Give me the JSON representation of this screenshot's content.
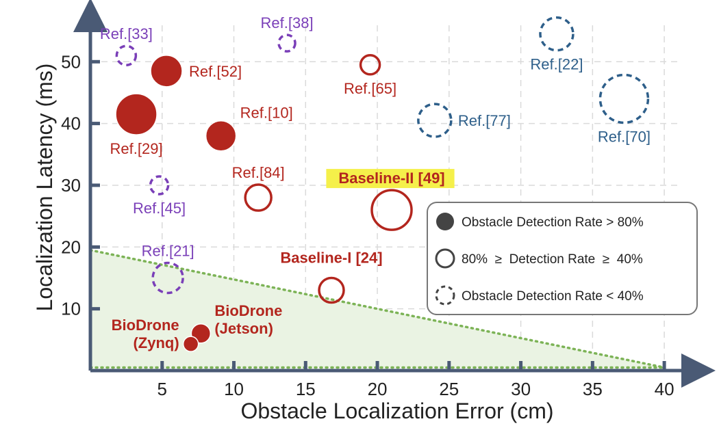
{
  "colors": {
    "red": "#B3261E",
    "purple": "#7A3FB8",
    "blue": "#2E5F8A",
    "axis": "#4A5A75",
    "grid": "#DADADA",
    "region_fill": "#EAF3E3",
    "region_line": "#7CB356",
    "highlight": "#F5F04A"
  },
  "legend": {
    "items": [
      {
        "marker": "filled",
        "label": "Obstacle Detection Rate > 80%"
      },
      {
        "marker": "open",
        "label": "80%  ≥  Detection Rate  ≥  40%"
      },
      {
        "marker": "dashed",
        "label": "Obstacle Detection Rate < 40%"
      }
    ]
  },
  "chart_data": {
    "type": "scatter",
    "title": "",
    "xlabel": "Obstacle Localization Error (cm)",
    "ylabel": "Localization Latency (ms)",
    "xlim": [
      0,
      42
    ],
    "ylim": [
      0,
      58
    ],
    "xticks": [
      5,
      10,
      15,
      20,
      25,
      30,
      35,
      40
    ],
    "yticks": [
      10,
      20,
      30,
      40,
      50
    ],
    "grid": true,
    "legend_position": "right",
    "shaded_region": {
      "line_from": [
        0,
        19.5
      ],
      "line_to": [
        40,
        0.5
      ]
    },
    "points": [
      {
        "label": "Ref.[33]",
        "x": 2.5,
        "y": 51,
        "r": 14,
        "style": "dashed",
        "color": "purple",
        "bold": false,
        "label_pos": "above"
      },
      {
        "label": "Ref.[38]",
        "x": 13.7,
        "y": 53,
        "r": 12,
        "style": "dashed",
        "color": "purple",
        "bold": false,
        "label_pos": "above"
      },
      {
        "label": "Ref.[52]",
        "x": 5.3,
        "y": 48.5,
        "r": 23,
        "style": "filled",
        "color": "red",
        "bold": false,
        "label_pos": "right"
      },
      {
        "label": "Ref.[29]",
        "x": 3.2,
        "y": 41.5,
        "r": 30,
        "style": "filled",
        "color": "red",
        "bold": false,
        "label_pos": "below"
      },
      {
        "label": "Ref.[10]",
        "x": 9.1,
        "y": 38,
        "r": 22,
        "style": "filled",
        "color": "red",
        "bold": false,
        "label_pos": "above-right"
      },
      {
        "label": "Ref.[45]",
        "x": 4.8,
        "y": 30,
        "r": 13,
        "style": "dashed",
        "color": "purple",
        "bold": false,
        "label_pos": "below"
      },
      {
        "label": "Ref.[84]",
        "x": 11.7,
        "y": 28,
        "r": 19,
        "style": "open",
        "color": "red",
        "bold": false,
        "label_pos": "above"
      },
      {
        "label": "Ref.[65]",
        "x": 19.5,
        "y": 49.5,
        "r": 14,
        "style": "open",
        "color": "red",
        "bold": false,
        "label_pos": "below"
      },
      {
        "label": "Baseline-II [49]",
        "x": 21,
        "y": 26,
        "r": 29,
        "style": "open",
        "color": "red",
        "bold": true,
        "label_pos": "above",
        "highlight": true
      },
      {
        "label": "Ref.[22]",
        "x": 32.5,
        "y": 54.5,
        "r": 24,
        "style": "dashed",
        "color": "blue",
        "bold": false,
        "label_pos": "below"
      },
      {
        "label": "Ref.[77]",
        "x": 24,
        "y": 40.5,
        "r": 24,
        "style": "dashed",
        "color": "blue",
        "bold": false,
        "label_pos": "right"
      },
      {
        "label": "Ref.[70]",
        "x": 37.2,
        "y": 44,
        "r": 35,
        "style": "dashed",
        "color": "blue",
        "bold": false,
        "label_pos": "below"
      },
      {
        "label": "Ref.[21]",
        "x": 5.4,
        "y": 15,
        "r": 22,
        "style": "dashed",
        "color": "purple",
        "bold": false,
        "label_pos": "above"
      },
      {
        "label": "Baseline-I [24]",
        "x": 16.8,
        "y": 13,
        "r": 18,
        "style": "open",
        "color": "red",
        "bold": true,
        "label_pos": "above-left"
      },
      {
        "label": "BioDrone (Jetson)",
        "x": 7.7,
        "y": 6,
        "r": 14,
        "style": "filled",
        "color": "red",
        "bold": true,
        "label_pos": "right"
      },
      {
        "label": "BioDrone (Zynq)",
        "x": 7,
        "y": 4.3,
        "r": 11,
        "style": "filled",
        "color": "red",
        "bold": true,
        "label_pos": "left"
      }
    ]
  }
}
